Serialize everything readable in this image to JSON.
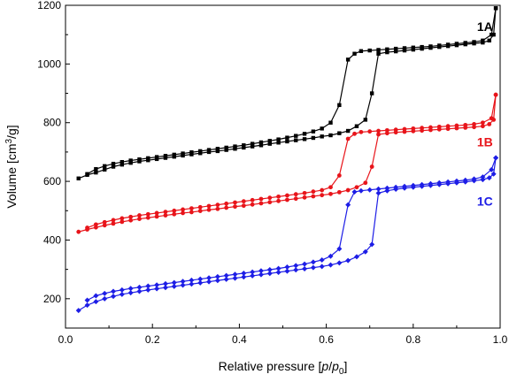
{
  "chart_data": {
    "type": "line",
    "xlabel": "Relative pressure [p/p0]",
    "ylabel": "Volume [cm3/g]",
    "xlim": [
      0.0,
      1.0
    ],
    "ylim": [
      100,
      1200
    ],
    "x_ticks": [
      "0.0",
      "0.2",
      "0.4",
      "0.6",
      "0.8",
      "1.0"
    ],
    "y_ticks": [
      "200",
      "400",
      "600",
      "800",
      "1000",
      "1200"
    ],
    "x_tick_values": [
      0.0,
      0.2,
      0.4,
      0.6,
      0.8,
      1.0
    ],
    "y_tick_values": [
      200,
      400,
      600,
      800,
      1000,
      1200
    ],
    "grid": false,
    "series": [
      {
        "name": "1A",
        "color": "#000000",
        "marker": "square",
        "adsorption": {
          "x": [
            0.03,
            0.05,
            0.07,
            0.09,
            0.11,
            0.13,
            0.15,
            0.17,
            0.19,
            0.21,
            0.23,
            0.25,
            0.27,
            0.29,
            0.31,
            0.33,
            0.35,
            0.37,
            0.39,
            0.41,
            0.43,
            0.45,
            0.47,
            0.49,
            0.51,
            0.53,
            0.55,
            0.57,
            0.59,
            0.61,
            0.63,
            0.65,
            0.67,
            0.69,
            0.705,
            0.72,
            0.74,
            0.76,
            0.78,
            0.8,
            0.82,
            0.84,
            0.86,
            0.88,
            0.9,
            0.92,
            0.94,
            0.96,
            0.975,
            0.985,
            0.99
          ],
          "y": [
            610,
            622,
            630,
            640,
            650,
            657,
            663,
            668,
            672,
            676,
            680,
            684,
            688,
            692,
            696,
            700,
            703,
            707,
            711,
            715,
            719,
            723,
            728,
            732,
            736,
            740,
            744,
            748,
            753,
            757,
            764,
            772,
            788,
            810,
            900,
            1035,
            1040,
            1043,
            1046,
            1049,
            1052,
            1055,
            1058,
            1061,
            1064,
            1067,
            1070,
            1073,
            1080,
            1100,
            1190
          ]
        },
        "desorption": {
          "x": [
            0.99,
            0.98,
            0.96,
            0.94,
            0.92,
            0.9,
            0.88,
            0.86,
            0.84,
            0.82,
            0.8,
            0.78,
            0.76,
            0.74,
            0.72,
            0.7,
            0.68,
            0.665,
            0.65,
            0.63,
            0.61,
            0.59,
            0.57,
            0.55,
            0.53,
            0.51,
            0.49,
            0.47,
            0.45,
            0.43,
            0.41,
            0.39,
            0.37,
            0.35,
            0.33,
            0.31,
            0.29,
            0.27,
            0.25,
            0.23,
            0.21,
            0.19,
            0.17,
            0.15,
            0.13,
            0.11,
            0.09,
            0.07,
            0.05
          ],
          "y": [
            1190,
            1100,
            1080,
            1075,
            1072,
            1069,
            1066,
            1063,
            1060,
            1058,
            1056,
            1054,
            1052,
            1050,
            1048,
            1046,
            1044,
            1035,
            1015,
            860,
            800,
            780,
            770,
            762,
            755,
            749,
            743,
            738,
            733,
            728,
            723,
            719,
            715,
            711,
            707,
            703,
            699,
            695,
            691,
            687,
            683,
            679,
            675,
            671,
            666,
            660,
            652,
            642,
            625
          ]
        }
      },
      {
        "name": "1B",
        "color": "#e8141a",
        "marker": "circle",
        "adsorption": {
          "x": [
            0.03,
            0.05,
            0.07,
            0.09,
            0.11,
            0.13,
            0.15,
            0.17,
            0.19,
            0.21,
            0.23,
            0.25,
            0.27,
            0.29,
            0.31,
            0.33,
            0.35,
            0.37,
            0.39,
            0.41,
            0.43,
            0.45,
            0.47,
            0.49,
            0.51,
            0.53,
            0.55,
            0.57,
            0.59,
            0.61,
            0.63,
            0.65,
            0.67,
            0.69,
            0.705,
            0.72,
            0.74,
            0.76,
            0.78,
            0.8,
            0.82,
            0.84,
            0.86,
            0.88,
            0.9,
            0.92,
            0.94,
            0.96,
            0.975,
            0.985,
            0.99
          ],
          "y": [
            428,
            436,
            443,
            450,
            456,
            462,
            467,
            472,
            476,
            480,
            484,
            488,
            492,
            495,
            499,
            503,
            506,
            510,
            514,
            517,
            521,
            525,
            529,
            533,
            537,
            541,
            545,
            549,
            553,
            557,
            563,
            570,
            580,
            595,
            650,
            760,
            764,
            767,
            769,
            771,
            773,
            775,
            777,
            779,
            781,
            783,
            785,
            788,
            795,
            810,
            895
          ]
        },
        "desorption": {
          "x": [
            0.99,
            0.98,
            0.96,
            0.94,
            0.92,
            0.9,
            0.88,
            0.86,
            0.84,
            0.82,
            0.8,
            0.78,
            0.76,
            0.74,
            0.72,
            0.7,
            0.68,
            0.665,
            0.65,
            0.63,
            0.61,
            0.59,
            0.57,
            0.55,
            0.53,
            0.51,
            0.49,
            0.47,
            0.45,
            0.43,
            0.41,
            0.39,
            0.37,
            0.35,
            0.33,
            0.31,
            0.29,
            0.27,
            0.25,
            0.23,
            0.21,
            0.19,
            0.17,
            0.15,
            0.13,
            0.11,
            0.09,
            0.07,
            0.05
          ],
          "y": [
            895,
            815,
            800,
            795,
            792,
            790,
            788,
            786,
            784,
            782,
            780,
            778,
            776,
            774,
            772,
            770,
            768,
            762,
            745,
            620,
            580,
            570,
            565,
            560,
            556,
            552,
            548,
            544,
            540,
            536,
            532,
            528,
            524,
            520,
            516,
            512,
            508,
            504,
            500,
            496,
            492,
            488,
            484,
            479,
            474,
            468,
            461,
            453,
            442
          ]
        }
      },
      {
        "name": "1C",
        "color": "#1d1de6",
        "marker": "diamond",
        "adsorption": {
          "x": [
            0.03,
            0.05,
            0.07,
            0.09,
            0.11,
            0.13,
            0.15,
            0.17,
            0.19,
            0.21,
            0.23,
            0.25,
            0.27,
            0.29,
            0.31,
            0.33,
            0.35,
            0.37,
            0.39,
            0.41,
            0.43,
            0.45,
            0.47,
            0.49,
            0.51,
            0.53,
            0.55,
            0.57,
            0.59,
            0.61,
            0.63,
            0.65,
            0.67,
            0.69,
            0.705,
            0.72,
            0.74,
            0.76,
            0.78,
            0.8,
            0.82,
            0.84,
            0.86,
            0.88,
            0.9,
            0.92,
            0.94,
            0.96,
            0.975,
            0.985,
            0.99
          ],
          "y": [
            160,
            178,
            190,
            200,
            208,
            215,
            220,
            225,
            230,
            234,
            238,
            242,
            246,
            250,
            254,
            258,
            262,
            266,
            270,
            274,
            278,
            282,
            286,
            290,
            294,
            298,
            302,
            306,
            310,
            315,
            322,
            330,
            343,
            360,
            385,
            560,
            568,
            573,
            577,
            580,
            583,
            586,
            589,
            592,
            595,
            598,
            602,
            606,
            612,
            625,
            680
          ]
        },
        "desorption": {
          "x": [
            0.99,
            0.98,
            0.96,
            0.94,
            0.92,
            0.9,
            0.88,
            0.86,
            0.84,
            0.82,
            0.8,
            0.78,
            0.76,
            0.74,
            0.72,
            0.7,
            0.68,
            0.665,
            0.65,
            0.63,
            0.61,
            0.59,
            0.57,
            0.55,
            0.53,
            0.51,
            0.49,
            0.47,
            0.45,
            0.43,
            0.41,
            0.39,
            0.37,
            0.35,
            0.33,
            0.31,
            0.29,
            0.27,
            0.25,
            0.23,
            0.21,
            0.19,
            0.17,
            0.15,
            0.13,
            0.11,
            0.09,
            0.07,
            0.05
          ],
          "y": [
            680,
            640,
            615,
            608,
            604,
            601,
            598,
            595,
            592,
            589,
            586,
            583,
            580,
            577,
            574,
            571,
            568,
            564,
            520,
            370,
            345,
            332,
            325,
            318,
            313,
            308,
            303,
            299,
            295,
            291,
            287,
            283,
            279,
            275,
            271,
            267,
            263,
            259,
            255,
            251,
            247,
            243,
            239,
            235,
            230,
            225,
            218,
            210,
            195
          ]
        }
      }
    ]
  }
}
